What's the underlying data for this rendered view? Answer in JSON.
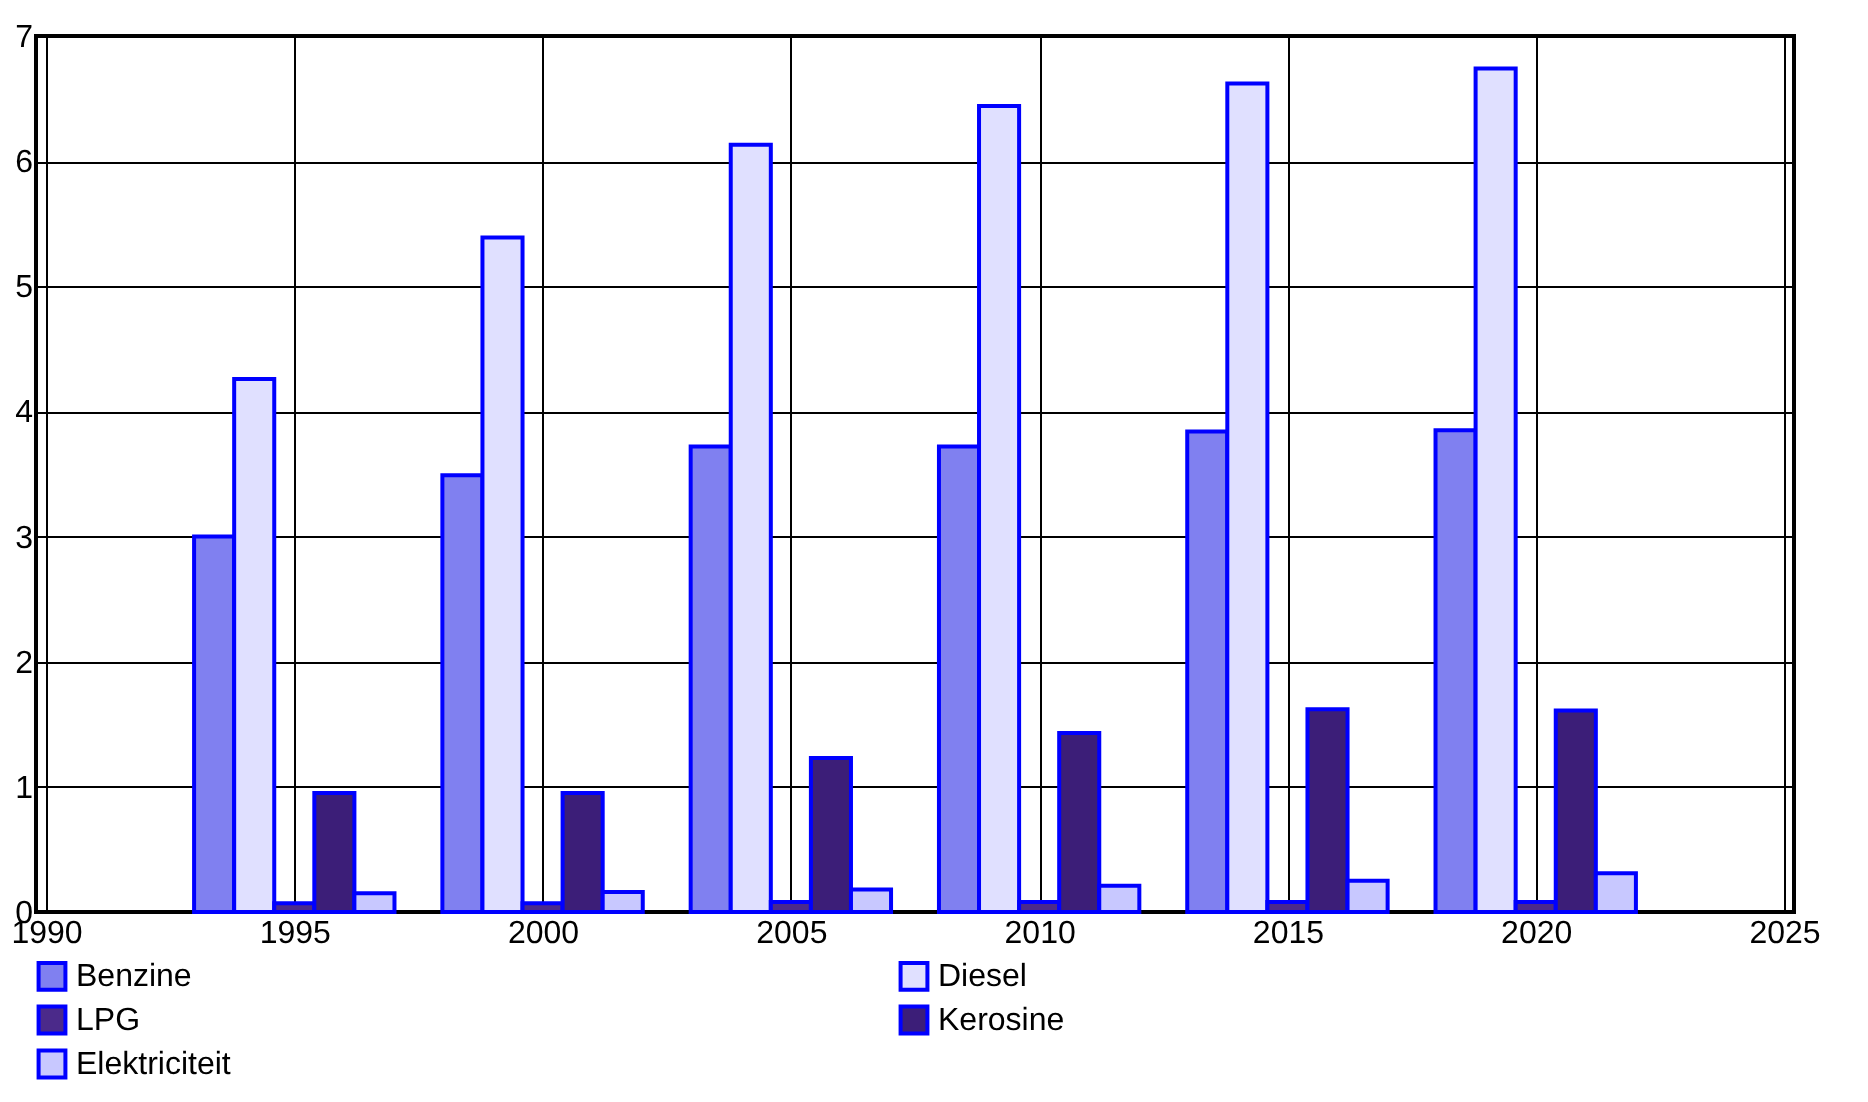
{
  "chart_data": {
    "type": "bar",
    "x": [
      1995,
      2000,
      2005,
      2010,
      2015,
      2020
    ],
    "series": [
      {
        "name": "Benzine",
        "color": "#8080f0",
        "values": [
          3.0,
          3.49,
          3.72,
          3.72,
          3.84,
          3.85
        ]
      },
      {
        "name": "Diesel",
        "color": "#e0e0ff",
        "values": [
          4.26,
          5.39,
          6.13,
          6.44,
          6.62,
          6.74
        ]
      },
      {
        "name": "LPG",
        "color": "#4b2a8a",
        "values": [
          0.07,
          0.07,
          0.08,
          0.08,
          0.08,
          0.08
        ]
      },
      {
        "name": "Kerosine",
        "color": "#3c1e78",
        "values": [
          0.95,
          0.95,
          1.23,
          1.43,
          1.62,
          1.61
        ]
      },
      {
        "name": "Elektriciteit",
        "color": "#c8c8ff",
        "values": [
          0.15,
          0.16,
          0.18,
          0.21,
          0.25,
          0.31
        ]
      }
    ],
    "xlim": [
      1990,
      2025
    ],
    "xticks": [
      1990,
      1995,
      2000,
      2005,
      2010,
      2015,
      2020,
      2025
    ],
    "ylim": [
      0,
      7
    ],
    "yticks": [
      0,
      1,
      2,
      3,
      4,
      5,
      6,
      7
    ],
    "grid": true,
    "legend": "bottom"
  }
}
